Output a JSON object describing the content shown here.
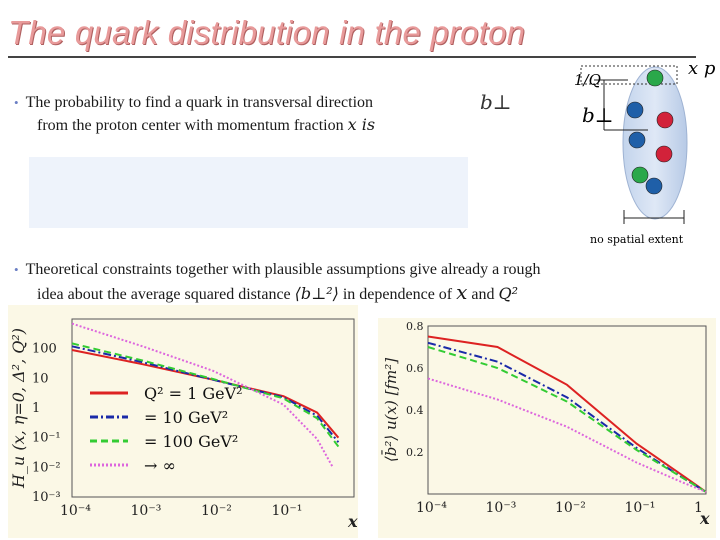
{
  "slide": {
    "title": "The quark distribution in the proton",
    "bullet1": {
      "line1": "The probability to find a quark in transversal direction",
      "line2_prefix": "from the proton center with momentum fraction ",
      "line2_var": "x",
      "line2_suffix": " is",
      "symbol": "b⊥"
    },
    "bullet2": {
      "line1": "Theoretical constraints together with plausible assumptions give already a rough",
      "line2_prefix": "idea about the average squared distance ",
      "line2_symbol": "⟨b⊥²⟩",
      "line2_mid": " in dependence of ",
      "line2_x": "x",
      "line2_and": " and ",
      "line2_q": "Q²"
    },
    "diagram": {
      "scale_label": "1/Q",
      "b_label": "b⊥",
      "x_p_label": "x p",
      "extent_label": "no spatial extent",
      "quark_colors": [
        "#2aa84a",
        "#1f5fa8",
        "#d2223a",
        "#1f5fa8",
        "#d2223a",
        "#2aa84a",
        "#1f5fa8"
      ]
    }
  },
  "chart_data": [
    {
      "type": "line",
      "title": "",
      "ylabel": "H_u (x, η=0, Δ², Q²)",
      "xlabel": "x",
      "xscale": "log",
      "yscale": "log",
      "xlim": [
        0.0001,
        1
      ],
      "ylim": [
        0.001,
        1000
      ],
      "x_ticks": [
        "10⁻⁴",
        "10⁻³",
        "10⁻²",
        "10⁻¹"
      ],
      "y_ticks": [
        "100",
        "10",
        "1",
        "10⁻¹",
        "10⁻²",
        "10⁻³"
      ],
      "legend_position": "bottom-left",
      "series": [
        {
          "name": "Q² = 1 GeV²",
          "color": "#dd2222",
          "dash": "solid",
          "x": [
            0.0001,
            0.001,
            0.01,
            0.1,
            0.3,
            0.6
          ],
          "y": [
            90,
            30,
            9,
            2.5,
            0.7,
            0.1
          ]
        },
        {
          "name": "= 10 GeV²",
          "color": "#1a2aa8",
          "dash": "dashdot",
          "x": [
            0.0001,
            0.001,
            0.01,
            0.1,
            0.3,
            0.6
          ],
          "y": [
            120,
            35,
            9,
            2.3,
            0.55,
            0.07
          ]
        },
        {
          "name": "= 100 GeV²",
          "color": "#33cc33",
          "dash": "dash",
          "x": [
            0.0001,
            0.001,
            0.01,
            0.1,
            0.3,
            0.6
          ],
          "y": [
            150,
            40,
            9.5,
            2.1,
            0.45,
            0.05
          ]
        },
        {
          "name": "→ ∞",
          "color": "#dd66dd",
          "dash": "dot",
          "x": [
            0.0001,
            0.001,
            0.01,
            0.1,
            0.3,
            0.5
          ],
          "y": [
            700,
            120,
            18,
            1.3,
            0.09,
            0.01
          ]
        }
      ]
    },
    {
      "type": "line",
      "title": "",
      "ylabel": "⟨b̄²⟩ u(x) [fm²]",
      "xlabel": "x",
      "xscale": "log",
      "xlim": [
        0.0001,
        1
      ],
      "ylim": [
        0,
        0.8
      ],
      "x_ticks": [
        "10⁻⁴",
        "10⁻³",
        "10⁻²",
        "10⁻¹",
        "1"
      ],
      "y_ticks": [
        "0.8",
        "0.6",
        "0.4",
        "0.2"
      ],
      "series": [
        {
          "name": "Q² = 1 GeV²",
          "color": "#dd2222",
          "dash": "solid",
          "x": [
            0.0001,
            0.001,
            0.01,
            0.1,
            0.5,
            1
          ],
          "y": [
            0.75,
            0.7,
            0.52,
            0.24,
            0.08,
            0.01
          ]
        },
        {
          "name": "= 10 GeV²",
          "color": "#1a2aa8",
          "dash": "dashdot",
          "x": [
            0.0001,
            0.001,
            0.01,
            0.1,
            0.5,
            1
          ],
          "y": [
            0.72,
            0.63,
            0.46,
            0.22,
            0.07,
            0.01
          ]
        },
        {
          "name": "= 100 GeV²",
          "color": "#33cc33",
          "dash": "dash",
          "x": [
            0.0001,
            0.001,
            0.01,
            0.1,
            0.5,
            1
          ],
          "y": [
            0.7,
            0.6,
            0.44,
            0.21,
            0.07,
            0.01
          ]
        },
        {
          "name": "→ ∞",
          "color": "#dd66dd",
          "dash": "dot",
          "x": [
            0.0001,
            0.001,
            0.01,
            0.1,
            0.5,
            1
          ],
          "y": [
            0.55,
            0.45,
            0.32,
            0.15,
            0.05,
            0.01
          ]
        }
      ]
    }
  ]
}
